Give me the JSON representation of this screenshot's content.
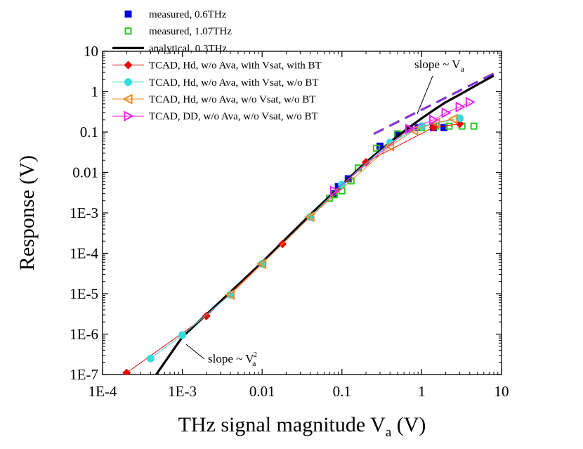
{
  "chart_data": {
    "type": "scatter",
    "xscale": "log",
    "yscale": "log",
    "xlim": [
      0.0001,
      10
    ],
    "ylim": [
      1e-07,
      10
    ],
    "xlabel": {
      "text": "THz signal magnitude V",
      "sub": "a",
      "unit": " (V)"
    },
    "ylabel": "Response (V)",
    "xticks": [
      {
        "value": 0.0001,
        "label": "1E-4"
      },
      {
        "value": 0.001,
        "label": "1E-3"
      },
      {
        "value": 0.01,
        "label": "0.01"
      },
      {
        "value": 0.1,
        "label": "0.1"
      },
      {
        "value": 1,
        "label": "1"
      },
      {
        "value": 10,
        "label": "10"
      }
    ],
    "yticks": [
      {
        "value": 1e-07,
        "label": "1E-7"
      },
      {
        "value": 1e-06,
        "label": "1E-6"
      },
      {
        "value": 1e-05,
        "label": "1E-5"
      },
      {
        "value": 0.0001,
        "label": "1E-4"
      },
      {
        "value": 0.001,
        "label": "1E-3"
      },
      {
        "value": 0.01,
        "label": "0.01"
      },
      {
        "value": 0.1,
        "label": "0.1"
      },
      {
        "value": 1,
        "label": "1"
      },
      {
        "value": 10,
        "label": "10"
      }
    ],
    "legend_position": "top-left",
    "series": [
      {
        "name": "measured, 0.6THz",
        "style": "marker",
        "marker": "square-filled",
        "color": "#0000dd",
        "x": [
          0.08,
          0.09,
          0.12,
          0.3,
          0.5,
          0.7,
          0.9,
          1.4,
          1.9
        ],
        "y": [
          0.003,
          0.0045,
          0.007,
          0.045,
          0.09,
          0.12,
          0.13,
          0.13,
          0.13
        ]
      },
      {
        "name": "measured, 1.07THz",
        "style": "marker",
        "marker": "square-open",
        "color": "#22cc22",
        "x": [
          0.07,
          0.08,
          0.1,
          0.13,
          0.16,
          0.27,
          0.5,
          1.0,
          1.5,
          2.2,
          3.2,
          4.5
        ],
        "y": [
          0.0023,
          0.0028,
          0.0035,
          0.0062,
          0.013,
          0.04,
          0.09,
          0.13,
          0.14,
          0.14,
          0.14,
          0.14
        ]
      },
      {
        "name": "analytical, 0.3THz",
        "style": "line",
        "color": "#000000",
        "x": [
          0.00047,
          0.001,
          0.004,
          0.01,
          0.04,
          0.1,
          0.2,
          0.3,
          0.5,
          0.8,
          1.0,
          1.5,
          2,
          3,
          5,
          8
        ],
        "y": [
          1e-07,
          8.5e-07,
          1.1e-05,
          6e-05,
          0.0009,
          0.005,
          0.018,
          0.035,
          0.08,
          0.16,
          0.22,
          0.38,
          0.55,
          0.85,
          1.5,
          2.5
        ]
      },
      {
        "name": "TCAD, Hd, w/o Ava, with Vsat, with BT",
        "style": "line-marker",
        "marker": "diamond-filled",
        "color": "#ee0000",
        "x": [
          0.0002,
          0.002,
          0.018,
          0.2,
          1.4,
          3.0
        ],
        "y": [
          1.1e-07,
          2.8e-06,
          0.00017,
          0.018,
          0.13,
          0.16
        ]
      },
      {
        "name": "TCAD, Hd, w/o Ava, with Vsat, w/o BT",
        "style": "line-marker",
        "marker": "circle-filled",
        "color": "#33dddd",
        "x": [
          0.0004,
          0.001,
          0.004,
          0.01,
          0.04,
          0.1,
          0.4,
          1.0,
          3.0
        ],
        "y": [
          2.5e-07,
          9.5e-07,
          9.5e-06,
          5.5e-05,
          0.0008,
          0.005,
          0.055,
          0.14,
          0.22
        ]
      },
      {
        "name": "TCAD, Hd, w/o Ava, w/o Vsat, w/o BT",
        "style": "line-marker",
        "marker": "triangle-left-open",
        "color": "#ee8822",
        "x": [
          0.004,
          0.01,
          0.04,
          0.4,
          0.8,
          1.5,
          2.5
        ],
        "y": [
          9.5e-06,
          5.5e-05,
          0.0008,
          0.045,
          0.11,
          0.17,
          0.21
        ]
      },
      {
        "name": "TCAD, DD, w/o Ava, w/o Vsat, w/o BT",
        "style": "line-marker",
        "marker": "triangle-right-open",
        "color": "#ee22ee",
        "x": [
          0.08,
          0.7,
          1.4,
          2.0,
          3.0,
          4.0
        ],
        "y": [
          0.0035,
          0.12,
          0.2,
          0.3,
          0.42,
          0.55
        ]
      }
    ],
    "reference_line": {
      "color": "#8833dd",
      "x": [
        0.25,
        8.5
      ],
      "y": [
        0.09,
        3.0
      ]
    },
    "annotations": [
      {
        "text": "slope ~ V",
        "sub": "a",
        "sup": "",
        "x": 1.0,
        "y": 2.5
      },
      {
        "text": "slope ~ V",
        "sub": "a",
        "sup": "2",
        "x": 0.0017,
        "y": 1.3e-07
      }
    ]
  }
}
